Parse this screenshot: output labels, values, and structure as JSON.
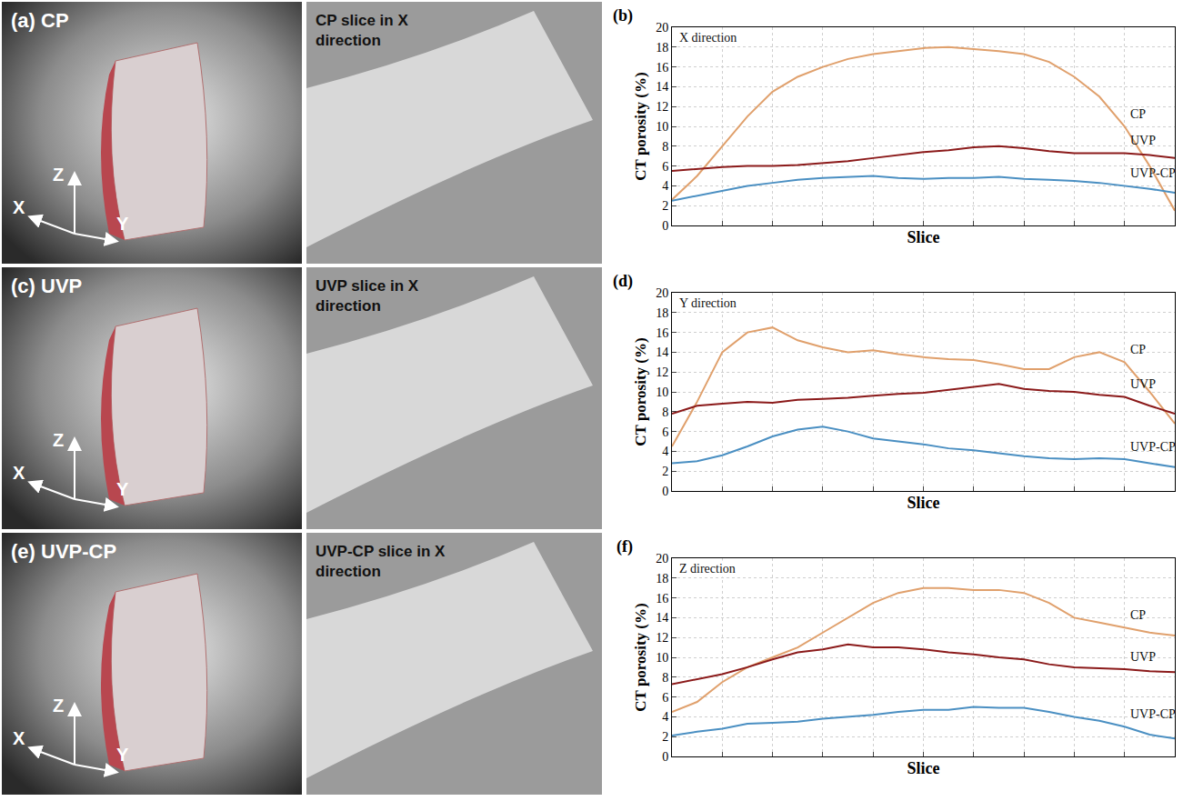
{
  "images": [
    {
      "panel": "(a)",
      "title": "CP",
      "slice_title": "CP slice in X direction",
      "axes": [
        "X",
        "Y",
        "Z"
      ]
    },
    {
      "panel": "(c)",
      "title": "UVP",
      "slice_title": "UVP slice in X direction",
      "axes": [
        "X",
        "Y",
        "Z"
      ]
    },
    {
      "panel": "(e)",
      "title": "UVP-CP",
      "slice_title": "UVP-CP slice in X direction",
      "axes": [
        "X",
        "Y",
        "Z"
      ]
    }
  ],
  "chart_data": [
    {
      "type": "line",
      "panel": "(b)",
      "annotation": "X direction",
      "x_label": "Slice",
      "y_label": "CT porosity (%)",
      "x": [
        0,
        5,
        10,
        15,
        20,
        25,
        30,
        35,
        40,
        45,
        50,
        55,
        60,
        65,
        70,
        75,
        80,
        85,
        90,
        95,
        100
      ],
      "xlim": [
        0,
        100
      ],
      "xticks": [
        0,
        10,
        20,
        30,
        40,
        50,
        60,
        70,
        80,
        90,
        100
      ],
      "ylim": [
        0,
        20
      ],
      "yticks": [
        0,
        2,
        4,
        6,
        8,
        10,
        12,
        14,
        16,
        18,
        20
      ],
      "grid": true,
      "tick_labels": "y",
      "series": [
        {
          "name": "CP",
          "color": "#e0a06c",
          "values": [
            2.6,
            5,
            8,
            11,
            13.5,
            15,
            16,
            16.8,
            17.3,
            17.6,
            17.9,
            18,
            17.8,
            17.6,
            17.3,
            16.5,
            15,
            13,
            10,
            6,
            1.5
          ]
        },
        {
          "name": "UVP",
          "color": "#8b1a1a",
          "values": [
            5.5,
            5.7,
            5.9,
            6,
            6,
            6.1,
            6.3,
            6.5,
            6.8,
            7.1,
            7.4,
            7.6,
            7.9,
            8,
            7.8,
            7.5,
            7.3,
            7.3,
            7.3,
            7.1,
            6.8
          ]
        },
        {
          "name": "UVP-CP",
          "color": "#4a8fc2",
          "values": [
            2.5,
            3,
            3.5,
            4,
            4.3,
            4.6,
            4.8,
            4.9,
            5,
            4.8,
            4.7,
            4.8,
            4.8,
            4.9,
            4.7,
            4.6,
            4.5,
            4.3,
            4,
            3.7,
            3.3
          ]
        }
      ]
    },
    {
      "type": "line",
      "panel": "(d)",
      "annotation": "Y direction",
      "x_label": "Slice",
      "y_label": "CT porosity (%)",
      "x": [
        0,
        5,
        10,
        15,
        20,
        25,
        30,
        35,
        40,
        45,
        50,
        55,
        60,
        65,
        70,
        75,
        80,
        85,
        90,
        95,
        100
      ],
      "xlim": [
        0,
        100
      ],
      "xticks": [
        0,
        10,
        20,
        30,
        40,
        50,
        60,
        70,
        80,
        90,
        100
      ],
      "ylim": [
        0,
        20
      ],
      "yticks": [
        0,
        2,
        4,
        6,
        8,
        10,
        12,
        14,
        16,
        18,
        20
      ],
      "grid": true,
      "tick_labels": "y",
      "series": [
        {
          "name": "CP",
          "color": "#e0a06c",
          "values": [
            4.5,
            9,
            14,
            16,
            16.5,
            15.2,
            14.5,
            14,
            14.2,
            13.8,
            13.5,
            13.3,
            13.2,
            12.8,
            12.3,
            12.3,
            13.5,
            14,
            13,
            10,
            6.8
          ]
        },
        {
          "name": "UVP",
          "color": "#8b1a1a",
          "values": [
            7.8,
            8.6,
            8.8,
            9,
            8.9,
            9.2,
            9.3,
            9.4,
            9.6,
            9.8,
            9.9,
            10.2,
            10.5,
            10.8,
            10.3,
            10.1,
            10,
            9.7,
            9.5,
            8.6,
            7.8
          ]
        },
        {
          "name": "UVP-CP",
          "color": "#4a8fc2",
          "values": [
            2.8,
            3,
            3.6,
            4.5,
            5.5,
            6.2,
            6.5,
            6,
            5.3,
            5,
            4.7,
            4.3,
            4.1,
            3.8,
            3.5,
            3.3,
            3.2,
            3.3,
            3.2,
            2.8,
            2.4
          ]
        }
      ]
    },
    {
      "type": "line",
      "panel": "(f)",
      "annotation": "Z direction",
      "x_label": "Slice",
      "y_label": "CT porosity (%)",
      "x": [
        0,
        5,
        10,
        15,
        20,
        25,
        30,
        35,
        40,
        45,
        50,
        55,
        60,
        65,
        70,
        75,
        80,
        85,
        90,
        95,
        100
      ],
      "xlim": [
        0,
        100
      ],
      "xticks": [
        0,
        10,
        20,
        30,
        40,
        50,
        60,
        70,
        80,
        90,
        100
      ],
      "ylim": [
        0,
        20
      ],
      "yticks": [
        0,
        2,
        4,
        6,
        8,
        10,
        12,
        14,
        16,
        18,
        20
      ],
      "grid": true,
      "tick_labels": "y",
      "series": [
        {
          "name": "CP",
          "color": "#e0a06c",
          "values": [
            4.5,
            5.5,
            7.5,
            9,
            10,
            11,
            12.5,
            14,
            15.5,
            16.5,
            17,
            17,
            16.8,
            16.8,
            16.5,
            15.5,
            14,
            13.5,
            13,
            12.5,
            12.2
          ]
        },
        {
          "name": "UVP",
          "color": "#8b1a1a",
          "values": [
            7.3,
            7.8,
            8.3,
            9,
            9.8,
            10.5,
            10.8,
            11.3,
            11,
            11,
            10.8,
            10.5,
            10.3,
            10,
            9.8,
            9.3,
            9,
            8.9,
            8.8,
            8.6,
            8.5
          ]
        },
        {
          "name": "UVP-CP",
          "color": "#4a8fc2",
          "values": [
            2.1,
            2.5,
            2.8,
            3.3,
            3.4,
            3.5,
            3.8,
            4,
            4.2,
            4.5,
            4.7,
            4.7,
            5,
            4.9,
            4.9,
            4.5,
            4,
            3.6,
            3,
            2.2,
            1.8
          ]
        }
      ]
    }
  ]
}
